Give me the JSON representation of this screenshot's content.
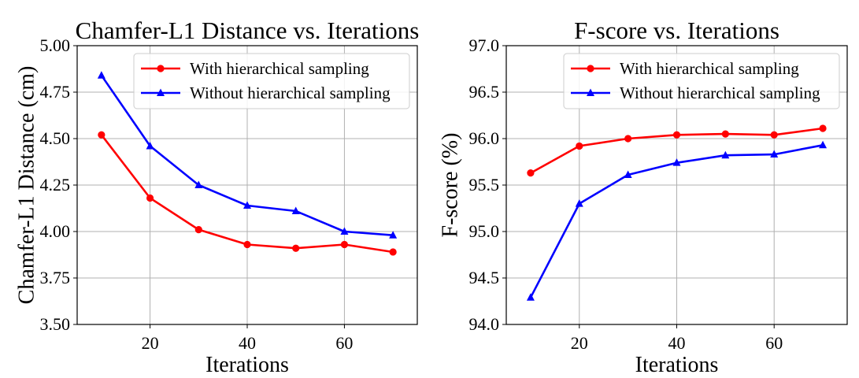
{
  "chart_data": [
    {
      "type": "line",
      "title": "Chamfer-L1 Distance vs. Iterations",
      "xlabel": "Iterations",
      "ylabel": "Chamfer-L1 Distance (cm)",
      "xlim": [
        5,
        75
      ],
      "ylim": [
        3.5,
        5.0
      ],
      "xticks": [
        20,
        40,
        60
      ],
      "xtick_labels": [
        "20",
        "40",
        "60"
      ],
      "yticks": [
        3.5,
        3.75,
        4.0,
        4.25,
        4.5,
        4.75,
        5.0
      ],
      "ytick_labels": [
        "3.50",
        "3.75",
        "4.00",
        "4.25",
        "4.50",
        "4.75",
        "5.00"
      ],
      "grid": true,
      "legend": "top-right",
      "x": [
        10,
        20,
        30,
        40,
        50,
        60,
        70
      ],
      "series": [
        {
          "name": "With hierarchical sampling",
          "color": "#ff0000",
          "marker": "circle",
          "values": [
            4.52,
            4.18,
            4.01,
            3.93,
            3.91,
            3.93,
            3.89
          ]
        },
        {
          "name": "Without hierarchical sampling",
          "color": "#0000ff",
          "marker": "triangle",
          "values": [
            4.84,
            4.46,
            4.25,
            4.14,
            4.11,
            4.0,
            3.98
          ]
        }
      ]
    },
    {
      "type": "line",
      "title": "F-score vs. Iterations",
      "xlabel": "Iterations",
      "ylabel": "F-score (%)",
      "xlim": [
        5,
        75
      ],
      "ylim": [
        94.0,
        97.0
      ],
      "xticks": [
        20,
        40,
        60
      ],
      "xtick_labels": [
        "20",
        "40",
        "60"
      ],
      "yticks": [
        94.0,
        94.5,
        95.0,
        95.5,
        96.0,
        96.5,
        97.0
      ],
      "ytick_labels": [
        "94.0",
        "94.5",
        "95.0",
        "95.5",
        "96.0",
        "96.5",
        "97.0"
      ],
      "grid": true,
      "legend": "top-right",
      "x": [
        10,
        20,
        30,
        40,
        50,
        60,
        70
      ],
      "series": [
        {
          "name": "With hierarchical sampling",
          "color": "#ff0000",
          "marker": "circle",
          "values": [
            95.63,
            95.92,
            96.0,
            96.04,
            96.05,
            96.04,
            96.11
          ]
        },
        {
          "name": "Without hierarchical sampling",
          "color": "#0000ff",
          "marker": "triangle",
          "values": [
            94.29,
            95.3,
            95.61,
            95.74,
            95.82,
            95.83,
            95.93
          ]
        }
      ]
    }
  ]
}
